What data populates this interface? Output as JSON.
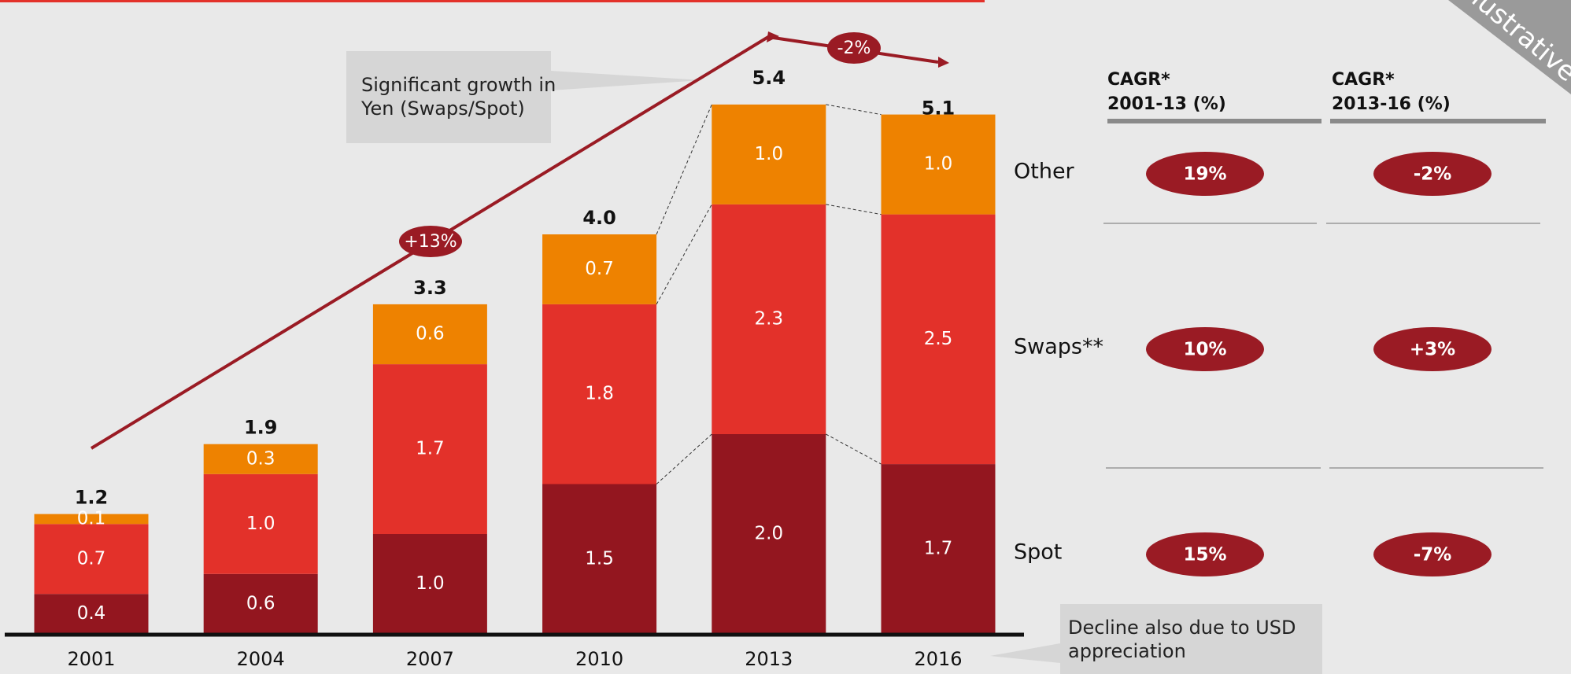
{
  "chart_data": {
    "type": "bar",
    "stacked": true,
    "categories": [
      "2001",
      "2004",
      "2007",
      "2010",
      "2013",
      "2016"
    ],
    "series": [
      {
        "name": "Spot",
        "color": "#93161f",
        "values": [
          0.4,
          0.6,
          1.0,
          1.5,
          2.0,
          1.7
        ],
        "value_labels": [
          "0.4",
          "0.6",
          "1.0",
          "1.5",
          "2.0",
          "1.7"
        ]
      },
      {
        "name": "Swaps**",
        "color": "#e3312a",
        "values": [
          0.7,
          1.0,
          1.7,
          1.8,
          2.3,
          2.5
        ],
        "value_labels": [
          "0.7",
          "1.0",
          "1.7",
          "1.8",
          "2.3",
          "2.5"
        ]
      },
      {
        "name": "Other",
        "color": "#ee8200",
        "values": [
          0.1,
          0.3,
          0.6,
          0.7,
          1.0,
          1.0
        ],
        "value_labels": [
          "0.1",
          "0.3",
          "0.6",
          "0.7",
          "1.0",
          "1.0"
        ]
      }
    ],
    "totals": [
      1.2,
      1.9,
      3.3,
      4.0,
      5.4,
      5.1
    ],
    "total_labels": [
      "1.2",
      "1.9",
      "3.3",
      "4.0",
      "5.4",
      "5.1"
    ],
    "growth_labels": [
      "+13%",
      "-2%"
    ],
    "annotations": [
      [
        "Significant growth in",
        "Yen (Swaps/Spot)"
      ],
      [
        "Decline also due to USD",
        "appreciation"
      ]
    ],
    "cagr_table": {
      "headers": [
        [
          "CAGR*",
          "2001-13 (%)"
        ],
        [
          "CAGR*",
          "2013-16 (%)"
        ]
      ],
      "rows": [
        [
          "15%",
          "-7%"
        ],
        [
          "10%",
          "+3%"
        ],
        [
          "19%",
          "-2%"
        ]
      ]
    },
    "badge": "Illustrative"
  }
}
